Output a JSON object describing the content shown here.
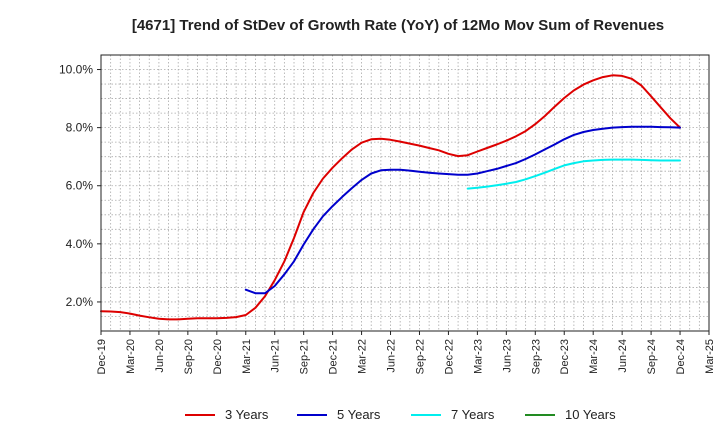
{
  "chart_data": {
    "type": "line",
    "title": "[4671]  Trend of StDev of Growth Rate (YoY) of 12Mo Mov Sum of Revenues",
    "xlabel": "",
    "ylabel": "",
    "x_range": [
      0,
      186
    ],
    "ylim": [
      1.0,
      10.5
    ],
    "grid": true,
    "legend_position": "bottom",
    "x_ticks": [
      {
        "label": "Dec-19",
        "x": 0
      },
      {
        "label": "Mar-20",
        "x": 3
      },
      {
        "label": "Jun-20",
        "x": 6
      },
      {
        "label": "Sep-20",
        "x": 9
      },
      {
        "label": "Dec-20",
        "x": 12
      },
      {
        "label": "Mar-21",
        "x": 15
      },
      {
        "label": "Jun-21",
        "x": 18
      },
      {
        "label": "Sep-21",
        "x": 21
      },
      {
        "label": "Dec-21",
        "x": 24
      },
      {
        "label": "Mar-22",
        "x": 27
      },
      {
        "label": "Jun-22",
        "x": 30
      },
      {
        "label": "Sep-22",
        "x": 33
      },
      {
        "label": "Dec-22",
        "x": 36
      },
      {
        "label": "Mar-23",
        "x": 39
      },
      {
        "label": "Jun-23",
        "x": 42
      },
      {
        "label": "Sep-23",
        "x": 45
      },
      {
        "label": "Dec-23",
        "x": 48
      },
      {
        "label": "Mar-24",
        "x": 51
      },
      {
        "label": "Jun-24",
        "x": 54
      },
      {
        "label": "Sep-24",
        "x": 57
      },
      {
        "label": "Dec-24",
        "x": 60
      },
      {
        "label": "Mar-25",
        "x": 63
      }
    ],
    "y_ticks": [
      {
        "label": "2.0%",
        "value": 2.0
      },
      {
        "label": "4.0%",
        "value": 4.0
      },
      {
        "label": "6.0%",
        "value": 6.0
      },
      {
        "label": "8.0%",
        "value": 8.0
      },
      {
        "label": "10.0%",
        "value": 10.0
      }
    ],
    "series": [
      {
        "name": "3 Years",
        "color": "#dd0000",
        "points": [
          [
            0,
            1.68
          ],
          [
            1,
            1.67
          ],
          [
            2,
            1.65
          ],
          [
            3,
            1.6
          ],
          [
            4,
            1.53
          ],
          [
            5,
            1.47
          ],
          [
            6,
            1.42
          ],
          [
            7,
            1.4
          ],
          [
            8,
            1.4
          ],
          [
            9,
            1.42
          ],
          [
            10,
            1.44
          ],
          [
            11,
            1.44
          ],
          [
            12,
            1.44
          ],
          [
            13,
            1.45
          ],
          [
            14,
            1.48
          ],
          [
            15,
            1.55
          ],
          [
            16,
            1.8
          ],
          [
            17,
            2.2
          ],
          [
            18,
            2.75
          ],
          [
            19,
            3.4
          ],
          [
            20,
            4.2
          ],
          [
            21,
            5.1
          ],
          [
            22,
            5.75
          ],
          [
            23,
            6.25
          ],
          [
            24,
            6.62
          ],
          [
            25,
            6.95
          ],
          [
            26,
            7.25
          ],
          [
            27,
            7.48
          ],
          [
            28,
            7.6
          ],
          [
            29,
            7.62
          ],
          [
            30,
            7.58
          ],
          [
            31,
            7.52
          ],
          [
            32,
            7.45
          ],
          [
            33,
            7.38
          ],
          [
            34,
            7.3
          ],
          [
            35,
            7.22
          ],
          [
            36,
            7.1
          ],
          [
            37,
            7.02
          ],
          [
            38,
            7.05
          ],
          [
            39,
            7.18
          ],
          [
            40,
            7.3
          ],
          [
            41,
            7.42
          ],
          [
            42,
            7.55
          ],
          [
            43,
            7.7
          ],
          [
            44,
            7.88
          ],
          [
            45,
            8.12
          ],
          [
            46,
            8.4
          ],
          [
            47,
            8.72
          ],
          [
            48,
            9.02
          ],
          [
            49,
            9.28
          ],
          [
            50,
            9.48
          ],
          [
            51,
            9.63
          ],
          [
            52,
            9.74
          ],
          [
            53,
            9.8
          ],
          [
            54,
            9.78
          ],
          [
            55,
            9.68
          ],
          [
            56,
            9.45
          ],
          [
            57,
            9.08
          ],
          [
            58,
            8.7
          ],
          [
            59,
            8.32
          ],
          [
            60,
            8.0
          ]
        ]
      },
      {
        "name": "5 Years",
        "color": "#0000cc",
        "points": [
          [
            15,
            2.42
          ],
          [
            16,
            2.3
          ],
          [
            17,
            2.3
          ],
          [
            18,
            2.55
          ],
          [
            19,
            2.95
          ],
          [
            20,
            3.4
          ],
          [
            21,
            3.98
          ],
          [
            22,
            4.5
          ],
          [
            23,
            4.95
          ],
          [
            24,
            5.3
          ],
          [
            25,
            5.62
          ],
          [
            26,
            5.92
          ],
          [
            27,
            6.2
          ],
          [
            28,
            6.42
          ],
          [
            29,
            6.53
          ],
          [
            30,
            6.55
          ],
          [
            31,
            6.55
          ],
          [
            32,
            6.52
          ],
          [
            33,
            6.48
          ],
          [
            34,
            6.45
          ],
          [
            35,
            6.42
          ],
          [
            36,
            6.4
          ],
          [
            37,
            6.38
          ],
          [
            38,
            6.38
          ],
          [
            39,
            6.42
          ],
          [
            40,
            6.5
          ],
          [
            41,
            6.58
          ],
          [
            42,
            6.68
          ],
          [
            43,
            6.78
          ],
          [
            44,
            6.92
          ],
          [
            45,
            7.08
          ],
          [
            46,
            7.25
          ],
          [
            47,
            7.42
          ],
          [
            48,
            7.6
          ],
          [
            49,
            7.75
          ],
          [
            50,
            7.85
          ],
          [
            51,
            7.92
          ],
          [
            52,
            7.96
          ],
          [
            53,
            8.0
          ],
          [
            54,
            8.02
          ],
          [
            55,
            8.03
          ],
          [
            56,
            8.03
          ],
          [
            57,
            8.03
          ],
          [
            58,
            8.02
          ],
          [
            59,
            8.01
          ],
          [
            60,
            8.0
          ]
        ]
      },
      {
        "name": "7 Years",
        "color": "#00eeee",
        "points": [
          [
            38,
            5.9
          ],
          [
            39,
            5.93
          ],
          [
            40,
            5.97
          ],
          [
            41,
            6.02
          ],
          [
            42,
            6.07
          ],
          [
            43,
            6.13
          ],
          [
            44,
            6.22
          ],
          [
            45,
            6.33
          ],
          [
            46,
            6.45
          ],
          [
            47,
            6.58
          ],
          [
            48,
            6.7
          ],
          [
            49,
            6.78
          ],
          [
            50,
            6.84
          ],
          [
            51,
            6.87
          ],
          [
            52,
            6.89
          ],
          [
            53,
            6.9
          ],
          [
            54,
            6.9
          ],
          [
            55,
            6.9
          ],
          [
            56,
            6.89
          ],
          [
            57,
            6.88
          ],
          [
            58,
            6.87
          ],
          [
            59,
            6.87
          ],
          [
            60,
            6.87
          ]
        ]
      },
      {
        "name": "10 Years",
        "color": "#228b22",
        "points": []
      }
    ]
  }
}
